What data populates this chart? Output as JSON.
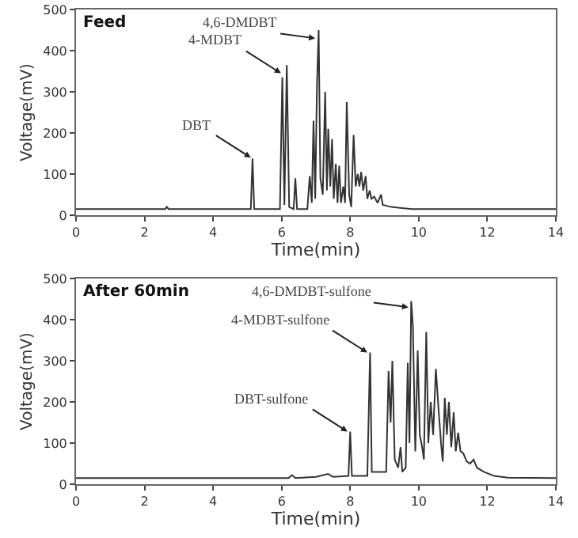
{
  "chart_data": [
    {
      "type": "line",
      "title": "Feed",
      "xlabel": "Time(min)",
      "ylabel": "Voltage(mV)",
      "color": "#333333",
      "x": [
        0,
        2.6,
        2.65,
        2.7,
        5.1,
        5.15,
        5.2,
        5.95,
        6.02,
        6.08,
        6.15,
        6.22,
        6.35,
        6.4,
        6.45,
        6.75,
        6.82,
        6.88,
        6.93,
        6.98,
        7.03,
        7.08,
        7.13,
        7.2,
        7.27,
        7.32,
        7.36,
        7.42,
        7.47,
        7.52,
        7.58,
        7.63,
        7.68,
        7.73,
        7.8,
        7.85,
        7.9,
        7.97,
        8.03,
        8.1,
        8.16,
        8.22,
        8.27,
        8.32,
        8.38,
        8.45,
        8.5,
        8.57,
        8.62,
        8.7,
        8.8,
        8.9,
        8.95,
        9.2,
        9.8,
        10.5,
        14
      ],
      "values": [
        15,
        15,
        20,
        15,
        15,
        138,
        15,
        15,
        335,
        25,
        365,
        20,
        15,
        90,
        15,
        15,
        95,
        30,
        230,
        40,
        315,
        450,
        90,
        50,
        300,
        60,
        210,
        70,
        185,
        40,
        125,
        30,
        120,
        30,
        70,
        30,
        275,
        50,
        20,
        195,
        70,
        100,
        70,
        105,
        60,
        95,
        40,
        60,
        40,
        45,
        30,
        50,
        25,
        20,
        15,
        15,
        15
      ],
      "xlim": [
        0,
        14
      ],
      "xticks": [
        0,
        2,
        4,
        6,
        8,
        10,
        12,
        14
      ],
      "ylim": [
        0,
        500
      ],
      "yticks": [
        0,
        100,
        200,
        300,
        400,
        500
      ],
      "annotations": [
        {
          "text": "DBT",
          "x": 5.1,
          "y": 140
        },
        {
          "text": "4-MDBT",
          "x": 5.98,
          "y": 345
        },
        {
          "text": "4,6-DMDBT",
          "x": 6.98,
          "y": 430
        }
      ]
    },
    {
      "type": "line",
      "title": "After 60min",
      "xlabel": "Time(min)",
      "ylabel": "Voltage(mV)",
      "color": "#333333",
      "x": [
        0,
        6.2,
        6.3,
        6.4,
        7.0,
        7.35,
        7.5,
        7.95,
        8.0,
        8.05,
        8.5,
        8.58,
        8.63,
        9.05,
        9.12,
        9.18,
        9.23,
        9.3,
        9.4,
        9.47,
        9.52,
        9.62,
        9.68,
        9.73,
        9.78,
        9.83,
        9.9,
        9.97,
        10.03,
        10.1,
        10.15,
        10.22,
        10.28,
        10.35,
        10.42,
        10.5,
        10.58,
        10.65,
        10.7,
        10.76,
        10.82,
        10.88,
        10.95,
        11.02,
        11.08,
        11.15,
        11.22,
        11.3,
        11.4,
        11.5,
        11.6,
        11.7,
        11.9,
        12.2,
        12.6,
        14
      ],
      "values": [
        15,
        15,
        22,
        15,
        18,
        25,
        18,
        20,
        128,
        20,
        20,
        320,
        30,
        30,
        275,
        150,
        300,
        60,
        40,
        90,
        30,
        40,
        295,
        100,
        445,
        385,
        80,
        325,
        120,
        90,
        60,
        370,
        100,
        200,
        120,
        280,
        180,
        100,
        55,
        210,
        120,
        200,
        90,
        175,
        80,
        125,
        80,
        75,
        55,
        50,
        60,
        40,
        30,
        20,
        16,
        15
      ],
      "xlim": [
        0,
        14
      ],
      "xticks": [
        0,
        2,
        4,
        6,
        8,
        10,
        12,
        14
      ],
      "ylim": [
        0,
        500
      ],
      "yticks": [
        0,
        100,
        200,
        300,
        400,
        500
      ],
      "annotations": [
        {
          "text": "DBT-sulfone",
          "x": 7.92,
          "y": 128
        },
        {
          "text": "4-MDBT-sulfone",
          "x": 8.5,
          "y": 320
        },
        {
          "text": "4,6-DMDBT-sulfone",
          "x": 9.7,
          "y": 430
        }
      ]
    }
  ]
}
